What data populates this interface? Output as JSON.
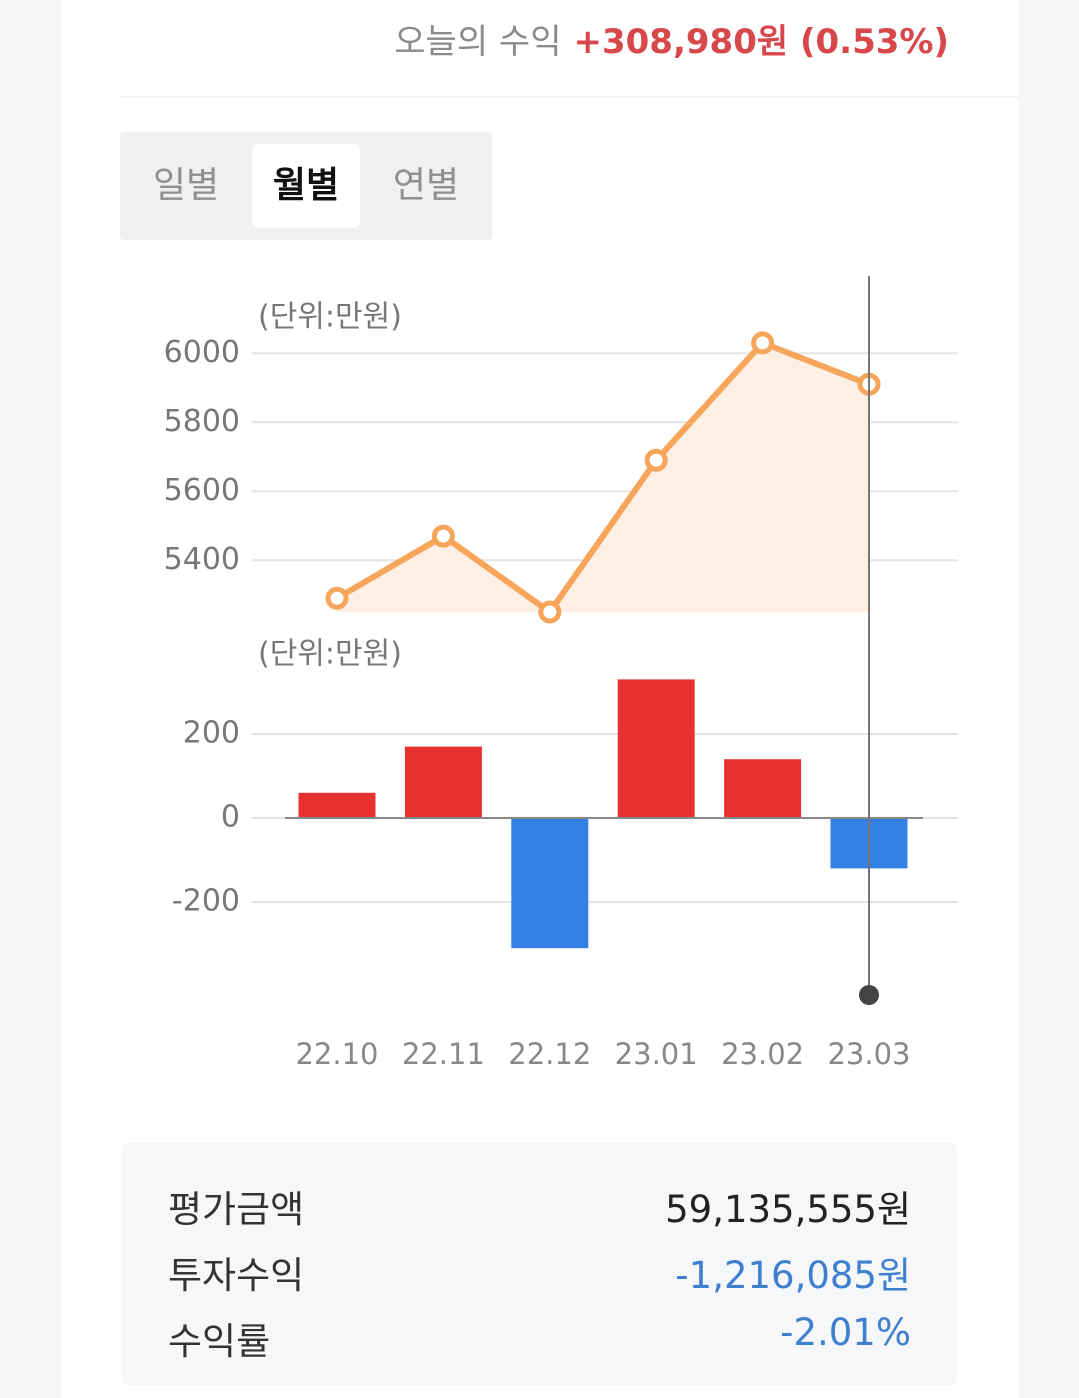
{
  "header": {
    "today_label": "오늘의 수익",
    "today_value": "+308,980원 (0.53%)"
  },
  "tabs": {
    "items": [
      "일별",
      "월별",
      "연별"
    ],
    "selected": 1
  },
  "chart_data": [
    {
      "type": "line",
      "unit_label": "(단위:만원)",
      "values": [
        5290,
        5470,
        5250,
        5690,
        6030,
        5910
      ],
      "color": "#f7a55a",
      "area_color": "#fdefe4",
      "ylim": [
        5250,
        6100
      ],
      "yticks": [
        5400,
        5600,
        5800,
        6000
      ],
      "grid": true
    },
    {
      "type": "bar",
      "unit_label": "(단위:만원)",
      "categories": [
        "22.10",
        "22.11",
        "22.12",
        "23.01",
        "23.02",
        "23.03"
      ],
      "values": [
        60,
        170,
        -310,
        330,
        140,
        -120
      ],
      "positive_color": "#e83232",
      "negative_color": "#3580e6",
      "ylim": [
        -340,
        340
      ],
      "yticks": [
        -200,
        0,
        200
      ],
      "grid": true
    }
  ],
  "summary": {
    "rows": [
      {
        "label": "평가금액",
        "value": "59,135,555원"
      },
      {
        "label": "투자수익",
        "value": "-1,216,085원"
      },
      {
        "label": "수익률",
        "value": "-2.01%"
      }
    ]
  }
}
